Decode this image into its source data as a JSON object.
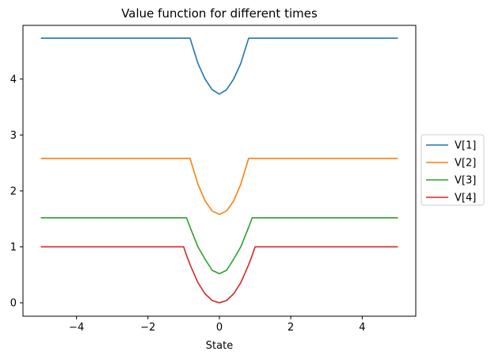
{
  "chart_data": {
    "type": "line",
    "title": "Value function for different times",
    "xlabel": "State",
    "ylabel": "",
    "xlim": [
      -5.5,
      5.5
    ],
    "ylim": [
      -0.24,
      4.96
    ],
    "xticks": [
      -4,
      -2,
      0,
      2,
      4
    ],
    "xtick_labels": [
      "−4",
      "−2",
      "0",
      "2",
      "4"
    ],
    "yticks": [
      0,
      1,
      2,
      3,
      4
    ],
    "ytick_labels": [
      "0",
      "1",
      "2",
      "3",
      "4"
    ],
    "grid": false,
    "legend_position": "right, outside plot",
    "x": [
      -5,
      -1,
      -0.92,
      -0.82,
      -0.6,
      -0.4,
      -0.2,
      0,
      0.2,
      0.4,
      0.6,
      0.82,
      0.92,
      1,
      5
    ],
    "series": [
      {
        "name": "V[1]",
        "color": "#1f77b4",
        "values": [
          4.73,
          4.73,
          4.73,
          4.73,
          4.28,
          4.0,
          3.81,
          3.73,
          3.81,
          4.0,
          4.28,
          4.73,
          4.73,
          4.73,
          4.73
        ]
      },
      {
        "name": "V[2]",
        "color": "#ff7f0e",
        "values": [
          2.58,
          2.58,
          2.58,
          2.58,
          2.12,
          1.82,
          1.64,
          1.58,
          1.64,
          1.82,
          2.12,
          2.58,
          2.58,
          2.58,
          2.58
        ]
      },
      {
        "name": "V[3]",
        "color": "#2ca02c",
        "values": [
          1.52,
          1.52,
          1.52,
          1.35,
          1.0,
          0.78,
          0.58,
          0.52,
          0.58,
          0.78,
          1.0,
          1.35,
          1.52,
          1.52,
          1.52
        ]
      },
      {
        "name": "V[4]",
        "color": "#d62728",
        "values": [
          1.0,
          1.0,
          0.85,
          0.68,
          0.36,
          0.16,
          0.04,
          0.0,
          0.04,
          0.16,
          0.36,
          0.68,
          0.85,
          1.0,
          1.0
        ]
      }
    ]
  }
}
